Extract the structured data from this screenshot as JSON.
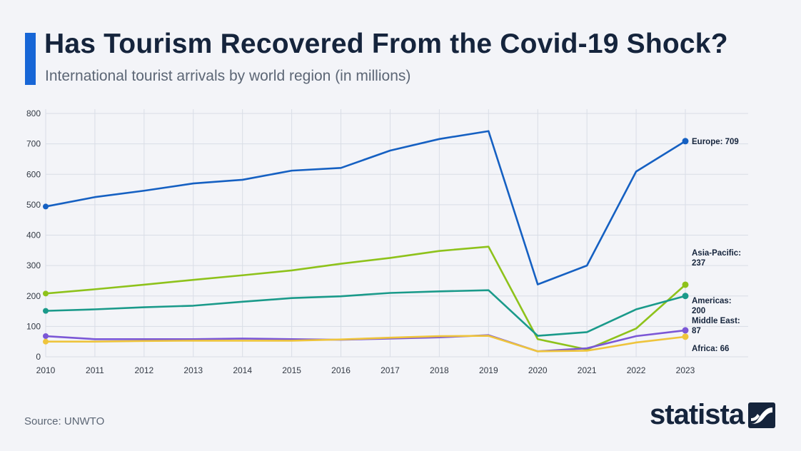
{
  "header": {
    "title": "Has Tourism Recovered From the Covid-19 Shock?",
    "subtitle": "International tourist arrivals by world region (in millions)"
  },
  "footer": {
    "source": "Source: UNWTO",
    "brand": "statista"
  },
  "colors": {
    "accent": "#1766d6",
    "title": "#15243c",
    "text_muted": "#5c6675",
    "grid": "#d9dde6"
  },
  "chart_data": {
    "type": "line",
    "title": "Has Tourism Recovered From the Covid-19 Shock?",
    "subtitle": "International tourist arrivals by world region (in millions)",
    "xlabel": "",
    "ylabel": "",
    "x": [
      "2010",
      "2011",
      "2012",
      "2013",
      "2014",
      "2015",
      "2016",
      "2017",
      "2018",
      "2019",
      "2020",
      "2021",
      "2022",
      "2023"
    ],
    "ylim": [
      0,
      800
    ],
    "yticks": [
      0,
      100,
      200,
      300,
      400,
      500,
      600,
      700,
      800
    ],
    "grid": true,
    "series": [
      {
        "name": "Europe",
        "color": "#1560c2",
        "values": [
          494,
          525,
          546,
          570,
          582,
          612,
          621,
          678,
          716,
          742,
          238,
          300,
          609,
          709
        ],
        "end_label": [
          "Europe: 709"
        ]
      },
      {
        "name": "Asia-Pacific",
        "color": "#8ec21b",
        "values": [
          208,
          222,
          237,
          253,
          268,
          284,
          306,
          325,
          348,
          362,
          58,
          24,
          93,
          237
        ],
        "end_label": [
          "Asia-Pacific:",
          "237"
        ]
      },
      {
        "name": "Americas",
        "color": "#1a9a8a",
        "values": [
          151,
          156,
          163,
          168,
          181,
          193,
          199,
          210,
          215,
          219,
          69,
          81,
          156,
          200
        ],
        "end_label": [
          "Americas:",
          "200"
        ]
      },
      {
        "name": "Middle East",
        "color": "#7b57d6",
        "values": [
          68,
          58,
          58,
          58,
          60,
          58,
          56,
          60,
          64,
          71,
          18,
          28,
          68,
          87
        ],
        "end_label": [
          "Middle East:",
          "87"
        ]
      },
      {
        "name": "Africa",
        "color": "#eec43c",
        "values": [
          50,
          50,
          52,
          53,
          53,
          53,
          57,
          63,
          68,
          69,
          18,
          20,
          47,
          66
        ],
        "end_label": [
          "Africa: 66"
        ]
      }
    ]
  }
}
